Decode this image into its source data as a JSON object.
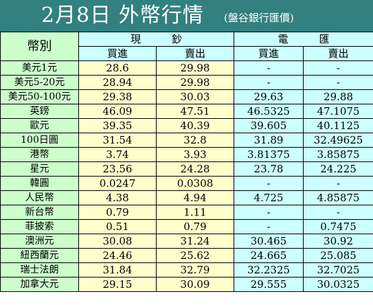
{
  "title": {
    "main": "2月8日 外幣行情",
    "source": "(盤谷銀行匯價)"
  },
  "colors": {
    "title_bar": "#338080",
    "currency_column": "#ccffcc",
    "cash_cells": "#ffffcc",
    "wire_cells": "#ccffff"
  },
  "headers": {
    "currency": "幣別",
    "cash_group": "現　　　鈔",
    "wire_group": "電　　　匯",
    "buy": "買進",
    "sell": "賣出"
  },
  "rows": [
    {
      "currency": "美元1元",
      "cash_buy": "28.6",
      "cash_sell": "29.98",
      "wire_buy": "-",
      "wire_sell": "-"
    },
    {
      "currency": "美元5-20元",
      "cash_buy": "28.94",
      "cash_sell": "29.98",
      "wire_buy": "-",
      "wire_sell": "-"
    },
    {
      "currency": "美元50-100元",
      "cash_buy": "29.38",
      "cash_sell": "30.03",
      "wire_buy": "29.63",
      "wire_sell": "29.88"
    },
    {
      "currency": "英鎊",
      "cash_buy": "46.09",
      "cash_sell": "47.51",
      "wire_buy": "46.5325",
      "wire_sell": "47.1075"
    },
    {
      "currency": "歐元",
      "cash_buy": "39.35",
      "cash_sell": "40.39",
      "wire_buy": "39.605",
      "wire_sell": "40.1125"
    },
    {
      "currency": "100日圓",
      "cash_buy": "31.54",
      "cash_sell": "32.8",
      "wire_buy": "31.89",
      "wire_sell": "32.49625"
    },
    {
      "currency": "港幣",
      "cash_buy": "3.74",
      "cash_sell": "3.93",
      "wire_buy": "3.81375",
      "wire_sell": "3.85875"
    },
    {
      "currency": "星元",
      "cash_buy": "23.56",
      "cash_sell": "24.28",
      "wire_buy": "23.78",
      "wire_sell": "24.225"
    },
    {
      "currency": "韓圓",
      "cash_buy": "0.0247",
      "cash_sell": "0.0308",
      "wire_buy": "-",
      "wire_sell": "-"
    },
    {
      "currency": "人民幣",
      "cash_buy": "4.38",
      "cash_sell": "4.94",
      "wire_buy": "4.725",
      "wire_sell": "4.85875"
    },
    {
      "currency": "新台幣",
      "cash_buy": "0.79",
      "cash_sell": "1.11",
      "wire_buy": "-",
      "wire_sell": "-"
    },
    {
      "currency": "菲披索",
      "cash_buy": "0.51",
      "cash_sell": "0.79",
      "wire_buy": "-",
      "wire_sell": "0.7475"
    },
    {
      "currency": "澳洲元",
      "cash_buy": "30.08",
      "cash_sell": "31.24",
      "wire_buy": "30.465",
      "wire_sell": "30.92"
    },
    {
      "currency": "紐西蘭元",
      "cash_buy": "24.46",
      "cash_sell": "25.62",
      "wire_buy": "24.665",
      "wire_sell": "25.085"
    },
    {
      "currency": "瑞士法朗",
      "cash_buy": "31.84",
      "cash_sell": "32.79",
      "wire_buy": "32.2325",
      "wire_sell": "32.7025"
    },
    {
      "currency": "加拿大元",
      "cash_buy": "29.15",
      "cash_sell": "30.09",
      "wire_buy": "29.555",
      "wire_sell": "30.0325"
    }
  ]
}
